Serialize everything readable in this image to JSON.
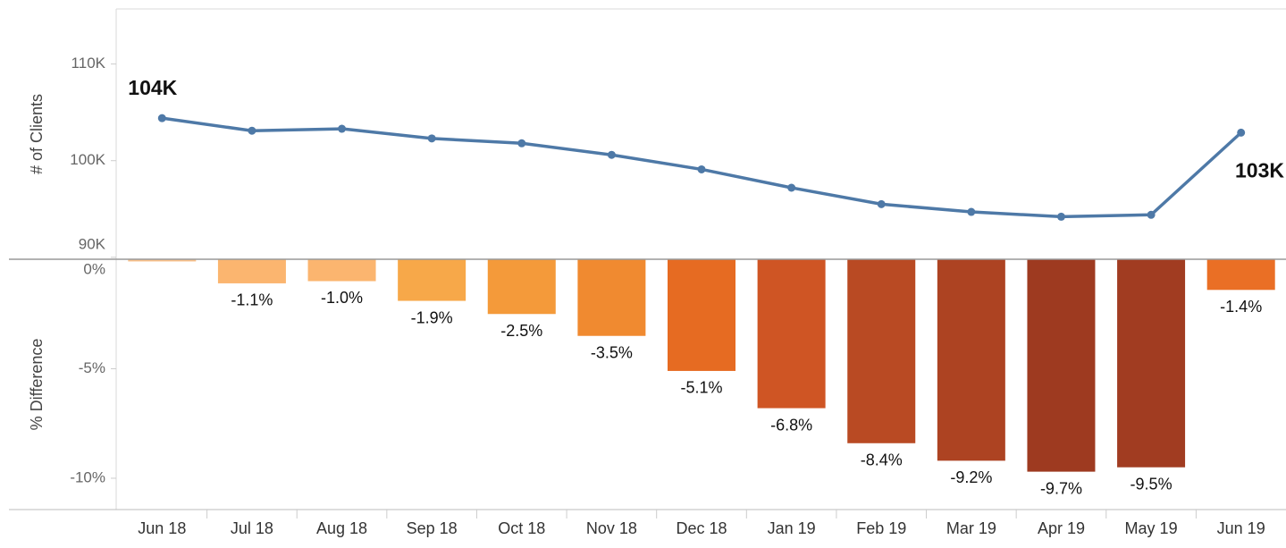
{
  "chart_data": [
    {
      "type": "line",
      "y_label": "# of Clients",
      "categories": [
        "Jun 18",
        "Jul 18",
        "Aug 18",
        "Sep 18",
        "Oct 18",
        "Nov 18",
        "Dec 18",
        "Jan 19",
        "Feb 19",
        "Mar 19",
        "Apr 19",
        "May 19",
        "Jun 19"
      ],
      "values": [
        104400,
        103100,
        103300,
        102300,
        101800,
        100600,
        99100,
        97200,
        95500,
        94700,
        94200,
        94400,
        102900
      ],
      "value_labels": [
        "104K",
        null,
        null,
        null,
        null,
        null,
        null,
        null,
        null,
        null,
        null,
        null,
        "103K"
      ],
      "color": "#4e79a7",
      "ylim": [
        89800,
        115700
      ],
      "yticks": [
        {
          "value": 90000,
          "label": "90K"
        },
        {
          "value": 100000,
          "label": "100K"
        },
        {
          "value": 110000,
          "label": "110K"
        }
      ]
    },
    {
      "type": "bar",
      "y_label": "% Difference",
      "values": [
        -0.1,
        -1.1,
        -1.0,
        -1.9,
        -2.5,
        -3.5,
        -5.1,
        -6.8,
        -8.4,
        -9.2,
        -9.7,
        -9.5,
        -1.4
      ],
      "value_labels": [
        null,
        "-1.1%",
        "-1.0%",
        "-1.9%",
        "-2.5%",
        "-3.5%",
        "-5.1%",
        "-6.8%",
        "-8.4%",
        "-9.2%",
        "-9.7%",
        "-9.5%",
        "-1.4%"
      ],
      "colors": [
        "#f9c08a",
        "#fbb56f",
        "#fbb56f",
        "#f7a849",
        "#f49a3a",
        "#f08a30",
        "#e66b22",
        "#cf5524",
        "#b94a23",
        "#ad4322",
        "#9e3a20",
        "#a13c21",
        "#ea6f25"
      ],
      "ylim": [
        -11.43,
        0
      ],
      "yticks": [
        {
          "value": 0,
          "label": "0%"
        },
        {
          "value": -5,
          "label": "-5%"
        },
        {
          "value": -10,
          "label": "-10%"
        }
      ]
    }
  ]
}
